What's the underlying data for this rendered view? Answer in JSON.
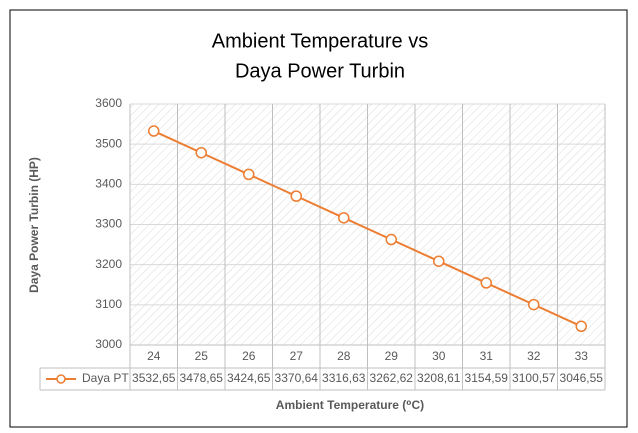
{
  "chart_data": {
    "type": "line",
    "title": [
      "Ambient Temperature vs",
      "Daya Power Turbin"
    ],
    "xlabel": "Ambient Temperature (⁰C)",
    "ylabel": "Daya Power Turbin (HP)",
    "categories": [
      24,
      25,
      26,
      27,
      28,
      29,
      30,
      31,
      32,
      33
    ],
    "series": [
      {
        "name": "Daya PT",
        "color": "#ed7d31",
        "values": [
          3532.65,
          3478.65,
          3424.65,
          3370.64,
          3316.63,
          3262.62,
          3208.61,
          3154.59,
          3100.57,
          3046.55
        ],
        "value_labels": [
          "3532,65",
          "3478,65",
          "3424,65",
          "3370,64",
          "3316,63",
          "3262,62",
          "3208,61",
          "3154,59",
          "3100,57",
          "3046,55"
        ]
      }
    ],
    "ylim": [
      3000,
      3600
    ],
    "yticks": [
      3000,
      3100,
      3200,
      3300,
      3400,
      3500,
      3600
    ],
    "grid": true
  }
}
